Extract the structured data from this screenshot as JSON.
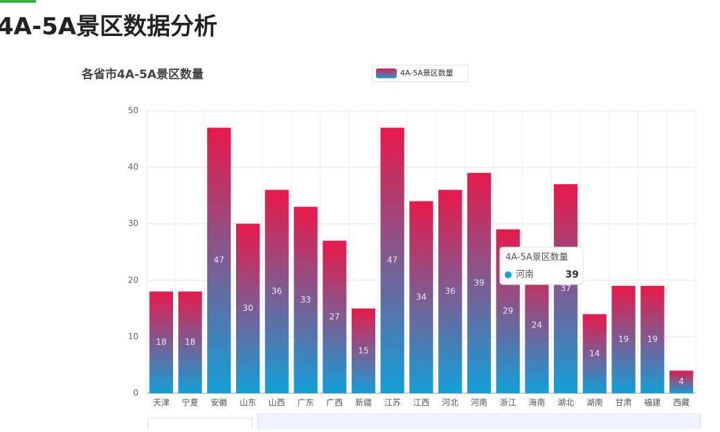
{
  "header": {
    "title": "4A-5A景区数据分析"
  },
  "chart_data": {
    "type": "bar",
    "title": "各省市4A-5A景区数量",
    "categories": [
      "天津",
      "宁夏",
      "安徽",
      "山东",
      "山西",
      "广东",
      "广西",
      "新疆",
      "江苏",
      "江西",
      "河北",
      "河南",
      "浙江",
      "海南",
      "湖北",
      "湖南",
      "甘肃",
      "福建",
      "西藏"
    ],
    "series": [
      {
        "name": "4A-5A景区数量",
        "gradient": [
          "#e8194a",
          "#139fd8"
        ],
        "values": [
          18,
          18,
          47,
          30,
          36,
          33,
          27,
          15,
          47,
          34,
          36,
          39,
          29,
          24,
          37,
          14,
          19,
          19,
          4
        ]
      }
    ],
    "ylim": [
      0,
      50
    ],
    "yticks": [
      0,
      10,
      20,
      30,
      40,
      50
    ],
    "grid": true,
    "tooltip": {
      "title": "4A-5A景区数量",
      "name": "河南",
      "value": 39
    }
  }
}
